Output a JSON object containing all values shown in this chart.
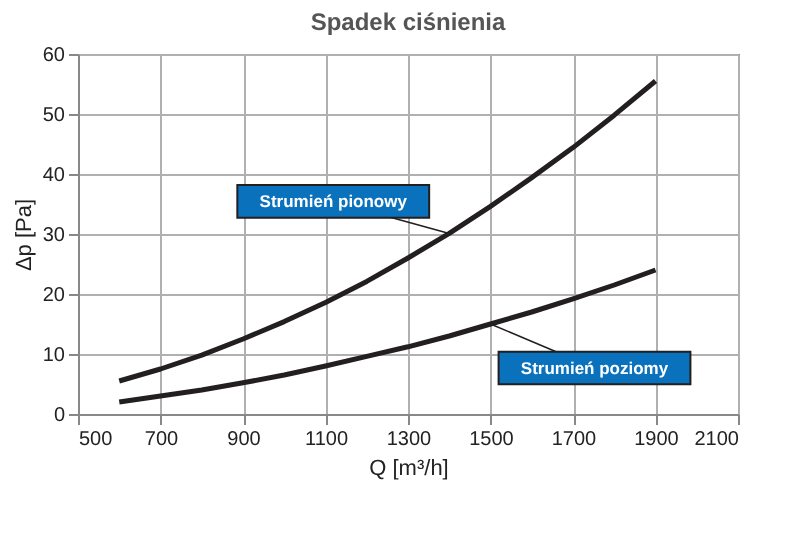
{
  "chart_data": {
    "type": "line",
    "title": "Spadek ciśnienia",
    "xlabel": "Q [m³/h]",
    "ylabel": "Δp [Pa]",
    "x": [
      600,
      700,
      800,
      900,
      1000,
      1100,
      1200,
      1300,
      1400,
      1500,
      1600,
      1700,
      1800,
      1900
    ],
    "series": [
      {
        "name": "Strumień pionowy",
        "color": "#231f20",
        "values": [
          5.5,
          7.5,
          9.8,
          12.5,
          15.4,
          18.6,
          22.1,
          26.0,
          30.1,
          34.6,
          39.4,
          44.4,
          49.8,
          55.5
        ]
      },
      {
        "name": "Strumień poziomy",
        "color": "#231f20",
        "values": [
          2.0,
          3.0,
          4.0,
          5.2,
          6.5,
          8.0,
          9.6,
          11.2,
          13.0,
          15.0,
          17.0,
          19.2,
          21.5,
          24.0
        ]
      }
    ],
    "xlim": [
      500,
      2100
    ],
    "xticks": [
      500,
      700,
      900,
      1100,
      1300,
      1500,
      1700,
      1900,
      2100
    ],
    "ylim": [
      0,
      60
    ],
    "yticks": [
      0,
      10,
      20,
      30,
      40,
      50,
      60
    ],
    "grid": true,
    "legend": false,
    "marker": "none",
    "line_style": "solid"
  }
}
